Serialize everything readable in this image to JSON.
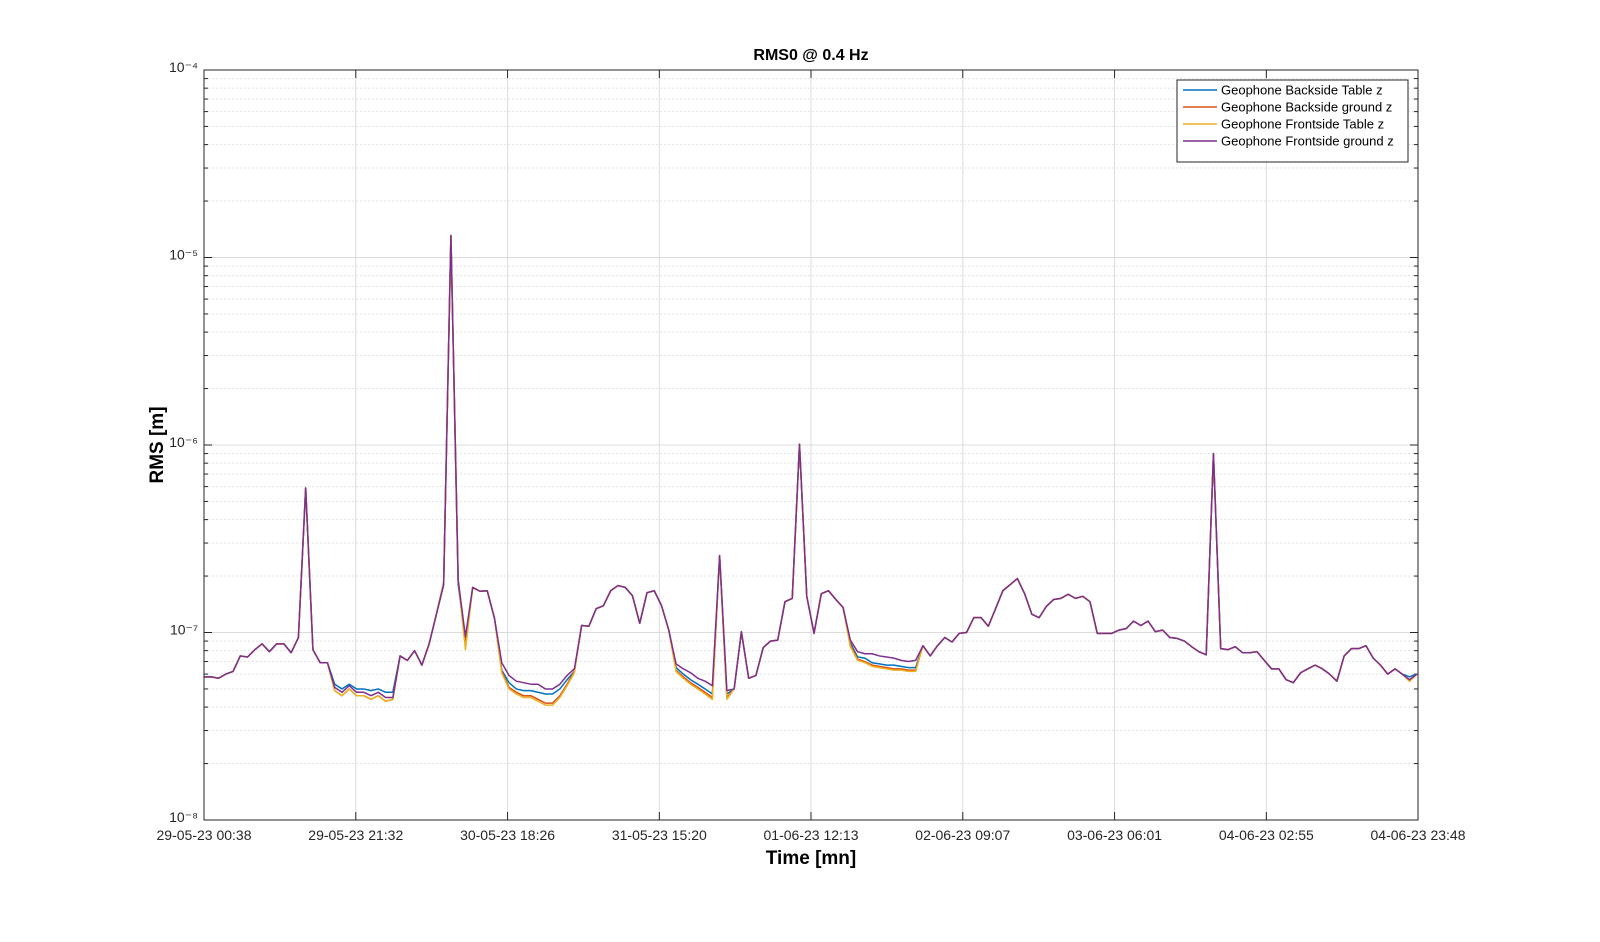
{
  "chart_data": {
    "type": "line",
    "title": "RMS0 @ 0.4 Hz",
    "x_label": "Time [mn]",
    "y_label": "RMS [m]",
    "y_scale": "log",
    "grid": true,
    "minor_grid": true,
    "legend": "northeast",
    "xlim": [
      "29-05-23 00:38",
      "04-06-23 23:48"
    ],
    "xticks": [
      "29-05-23 00:38",
      "29-05-23 21:32",
      "30-05-23 18:26",
      "31-05-23 15:20",
      "01-06-23 12:13",
      "02-06-23 09:07",
      "03-06-23 06:01",
      "04-06-23 02:55",
      "04-06-23 23:48"
    ],
    "ylim": [
      1e-08,
      0.0001
    ],
    "yticks": [
      {
        "value": 1e-08,
        "label": "10⁻⁸"
      },
      {
        "value": 1e-07,
        "label": "10⁻⁷"
      },
      {
        "value": 1e-06,
        "label": "10⁻⁶"
      },
      {
        "value": 1e-05,
        "label": "10⁻⁵"
      },
      {
        "value": 0.0001,
        "label": "10⁻⁴"
      }
    ],
    "yminorticks": [
      2e-08,
      3e-08,
      4e-08,
      5e-08,
      6e-08,
      7e-08,
      8e-08,
      9e-08,
      2e-07,
      3e-07,
      4e-07,
      5e-07,
      6e-07,
      7e-07,
      8e-07,
      9e-07,
      2e-06,
      3e-06,
      4e-06,
      5e-06,
      6e-06,
      7e-06,
      8e-06,
      9e-06,
      2e-05,
      3e-05,
      4e-05,
      5e-05,
      6e-05,
      7e-05,
      8e-05,
      9e-05
    ],
    "x": [
      "29-05-23 00:38",
      "29-05-23 01:38",
      "29-05-23 02:38",
      "29-05-23 03:38",
      "29-05-23 04:38",
      "29-05-23 05:38",
      "29-05-23 06:38",
      "29-05-23 07:38",
      "29-05-23 08:38",
      "29-05-23 09:38",
      "29-05-23 10:38",
      "29-05-23 11:38",
      "29-05-23 12:38",
      "29-05-23 13:38",
      "29-05-23 14:38",
      "29-05-23 15:38",
      "29-05-23 16:38",
      "29-05-23 17:38",
      "29-05-23 18:38",
      "29-05-23 19:38",
      "29-05-23 20:38",
      "29-05-23 21:38",
      "29-05-23 22:38",
      "29-05-23 23:38",
      "30-05-23 00:38",
      "30-05-23 01:38",
      "30-05-23 02:38",
      "30-05-23 03:38",
      "30-05-23 04:38",
      "30-05-23 05:38",
      "30-05-23 06:38",
      "30-05-23 07:38",
      "30-05-23 08:38",
      "30-05-23 09:38",
      "30-05-23 10:38",
      "30-05-23 11:38",
      "30-05-23 12:38",
      "30-05-23 13:38",
      "30-05-23 14:38",
      "30-05-23 15:38",
      "30-05-23 16:38",
      "30-05-23 17:38",
      "30-05-23 18:38",
      "30-05-23 19:38",
      "30-05-23 20:38",
      "30-05-23 21:38",
      "30-05-23 22:38",
      "30-05-23 23:38",
      "31-05-23 00:38",
      "31-05-23 01:38",
      "31-05-23 02:38",
      "31-05-23 03:38",
      "31-05-23 04:38",
      "31-05-23 05:38",
      "31-05-23 06:38",
      "31-05-23 07:38",
      "31-05-23 08:38",
      "31-05-23 09:38",
      "31-05-23 10:38",
      "31-05-23 11:38",
      "31-05-23 12:38",
      "31-05-23 13:38",
      "31-05-23 14:38",
      "31-05-23 15:38",
      "31-05-23 16:38",
      "31-05-23 17:38",
      "31-05-23 18:38",
      "31-05-23 19:38",
      "31-05-23 20:38",
      "31-05-23 21:38",
      "31-05-23 22:38",
      "31-05-23 23:38",
      "01-06-23 00:38",
      "01-06-23 01:38",
      "01-06-23 02:38",
      "01-06-23 03:38",
      "01-06-23 04:38",
      "01-06-23 05:38",
      "01-06-23 06:38",
      "01-06-23 07:38",
      "01-06-23 08:38",
      "01-06-23 09:38",
      "01-06-23 10:38",
      "01-06-23 11:38",
      "01-06-23 12:38",
      "01-06-23 13:38",
      "01-06-23 14:38",
      "01-06-23 15:38",
      "01-06-23 16:38",
      "01-06-23 17:38",
      "01-06-23 18:38",
      "01-06-23 19:38",
      "01-06-23 20:38",
      "01-06-23 21:38",
      "01-06-23 22:38",
      "01-06-23 23:38",
      "02-06-23 00:38",
      "02-06-23 01:38",
      "02-06-23 02:38",
      "02-06-23 03:38",
      "02-06-23 04:38",
      "02-06-23 05:38",
      "02-06-23 06:38",
      "02-06-23 07:38",
      "02-06-23 08:38",
      "02-06-23 09:38",
      "02-06-23 10:38",
      "02-06-23 11:38",
      "02-06-23 12:38",
      "02-06-23 13:38",
      "02-06-23 14:38",
      "02-06-23 15:38",
      "02-06-23 16:38",
      "02-06-23 17:38",
      "02-06-23 18:38",
      "02-06-23 19:38",
      "02-06-23 20:38",
      "02-06-23 21:38",
      "02-06-23 22:38",
      "02-06-23 23:38",
      "03-06-23 00:38",
      "03-06-23 01:38",
      "03-06-23 02:38",
      "03-06-23 03:38",
      "03-06-23 04:38",
      "03-06-23 05:38",
      "03-06-23 06:38",
      "03-06-23 07:38",
      "03-06-23 08:38",
      "03-06-23 09:38",
      "03-06-23 10:38",
      "03-06-23 11:38",
      "03-06-23 12:38",
      "03-06-23 13:38",
      "03-06-23 14:38",
      "03-06-23 15:38",
      "03-06-23 16:38",
      "03-06-23 17:38",
      "03-06-23 18:38",
      "03-06-23 19:38",
      "03-06-23 20:38",
      "03-06-23 21:38",
      "03-06-23 22:38",
      "03-06-23 23:38",
      "04-06-23 00:38",
      "04-06-23 01:38",
      "04-06-23 02:38",
      "04-06-23 03:38",
      "04-06-23 04:38",
      "04-06-23 05:38",
      "04-06-23 06:38",
      "04-06-23 07:38",
      "04-06-23 08:38",
      "04-06-23 09:38",
      "04-06-23 10:38",
      "04-06-23 11:38",
      "04-06-23 12:38",
      "04-06-23 13:38",
      "04-06-23 14:38",
      "04-06-23 15:38",
      "04-06-23 16:38",
      "04-06-23 17:38",
      "04-06-23 18:38",
      "04-06-23 19:38",
      "04-06-23 20:38",
      "04-06-23 21:38",
      "04-06-23 22:38",
      "04-06-23 23:38"
    ],
    "series": [
      {
        "name": "Geophone Backside Table z",
        "color": "#0072BD",
        "values": [
          5.8e-08,
          5.8e-08,
          5.7e-08,
          6e-08,
          6.2e-08,
          7.5e-08,
          7.4e-08,
          8.1e-08,
          8.7e-08,
          7.9e-08,
          8.7e-08,
          8.7e-08,
          7.8e-08,
          9.4e-08,
          5.9e-07,
          8.1e-08,
          6.9e-08,
          6.9e-08,
          5.3e-08,
          5e-08,
          5.3e-08,
          5e-08,
          5e-08,
          4.9e-08,
          5e-08,
          4.8e-08,
          4.8e-08,
          7.5e-08,
          7.1e-08,
          8e-08,
          6.7e-08,
          8.7e-08,
          1.25e-07,
          1.8e-07,
          1.31e-05,
          1.8e-07,
          9e-08,
          1.74e-07,
          1.66e-07,
          1.67e-07,
          1.19e-07,
          6.3e-08,
          5.4e-08,
          5e-08,
          4.9e-08,
          4.9e-08,
          4.8e-08,
          4.7e-08,
          4.7e-08,
          5e-08,
          5.6e-08,
          6.2e-08,
          1.09e-07,
          1.08e-07,
          1.34e-07,
          1.39e-07,
          1.67e-07,
          1.78e-07,
          1.74e-07,
          1.57e-07,
          1.12e-07,
          1.63e-07,
          1.67e-07,
          1.39e-07,
          1.03e-07,
          6.5e-08,
          6e-08,
          5.6e-08,
          5.3e-08,
          5e-08,
          4.7e-08,
          2.57e-07,
          4.7e-08,
          5e-08,
          1.01e-07,
          5.7e-08,
          5.9e-08,
          8.3e-08,
          9e-08,
          9.1e-08,
          1.46e-07,
          1.52e-07,
          1.01e-06,
          1.56e-07,
          9.9e-08,
          1.61e-07,
          1.67e-07,
          1.5e-07,
          1.36e-07,
          8.8e-08,
          7.4e-08,
          7.3e-08,
          6.9e-08,
          6.8e-08,
          6.7e-08,
          6.7e-08,
          6.6e-08,
          6.5e-08,
          6.5e-08,
          8.5e-08,
          7.5e-08,
          8.5e-08,
          9.4e-08,
          8.9e-08,
          9.9e-08,
          1e-07,
          1.2e-07,
          1.2e-07,
          1.08e-07,
          1.34e-07,
          1.67e-07,
          1.8e-07,
          1.94e-07,
          1.61e-07,
          1.25e-07,
          1.2e-07,
          1.38e-07,
          1.5e-07,
          1.52e-07,
          1.6e-07,
          1.52e-07,
          1.56e-07,
          1.46e-07,
          9.9e-08,
          9.9e-08,
          9.9e-08,
          1.03e-07,
          1.05e-07,
          1.15e-07,
          1.09e-07,
          1.15e-07,
          1.01e-07,
          1.03e-07,
          9.4e-08,
          9.3e-08,
          9e-08,
          8.4e-08,
          7.9e-08,
          7.6e-08,
          9e-07,
          8.2e-08,
          8.1e-08,
          8.4e-08,
          7.8e-08,
          7.8e-08,
          7.9e-08,
          7.1e-08,
          6.4e-08,
          6.4e-08,
          5.6e-08,
          5.4e-08,
          6.1e-08,
          6.4e-08,
          6.7e-08,
          6.4e-08,
          6e-08,
          5.5e-08,
          7.5e-08,
          8.2e-08,
          8.2e-08,
          8.5e-08,
          7.3e-08,
          6.7e-08,
          6e-08,
          6.4e-08,
          6e-08,
          5.8e-08,
          6e-08
        ]
      },
      {
        "name": "Geophone Backside ground z",
        "color": "#D95319",
        "values": [
          5.8e-08,
          5.8e-08,
          5.7e-08,
          6e-08,
          6.2e-08,
          7.5e-08,
          7.4e-08,
          8.1e-08,
          8.7e-08,
          7.9e-08,
          8.7e-08,
          8.7e-08,
          7.8e-08,
          9.4e-08,
          5.9e-07,
          8.1e-08,
          6.9e-08,
          6.9e-08,
          4.9e-08,
          4.6e-08,
          5e-08,
          4.6e-08,
          4.6e-08,
          4.4e-08,
          4.6e-08,
          4.3e-08,
          4.4e-08,
          7.5e-08,
          7.1e-08,
          8e-08,
          6.7e-08,
          8.7e-08,
          1.25e-07,
          1.85e-07,
          1.31e-05,
          1.9e-07,
          9e-08,
          1.74e-07,
          1.66e-07,
          1.67e-07,
          1.19e-07,
          6.2e-08,
          5.1e-08,
          4.8e-08,
          4.6e-08,
          4.6e-08,
          4.4e-08,
          4.2e-08,
          4.2e-08,
          4.6e-08,
          5.3e-08,
          6.2e-08,
          1.09e-07,
          1.08e-07,
          1.34e-07,
          1.39e-07,
          1.67e-07,
          1.78e-07,
          1.74e-07,
          1.57e-07,
          1.12e-07,
          1.63e-07,
          1.67e-07,
          1.39e-07,
          1.03e-07,
          6.3e-08,
          5.8e-08,
          5.4e-08,
          5.1e-08,
          4.8e-08,
          4.5e-08,
          2.57e-07,
          4.5e-08,
          5e-08,
          1.01e-07,
          5.7e-08,
          5.9e-08,
          8.3e-08,
          9e-08,
          9.1e-08,
          1.46e-07,
          1.52e-07,
          1.01e-06,
          1.56e-07,
          9.9e-08,
          1.61e-07,
          1.67e-07,
          1.5e-07,
          1.36e-07,
          8.6e-08,
          7.2e-08,
          7e-08,
          6.7e-08,
          6.6e-08,
          6.5e-08,
          6.4e-08,
          6.4e-08,
          6.3e-08,
          6.3e-08,
          8.5e-08,
          7.5e-08,
          8.5e-08,
          9.4e-08,
          8.9e-08,
          9.9e-08,
          1e-07,
          1.2e-07,
          1.2e-07,
          1.08e-07,
          1.34e-07,
          1.67e-07,
          1.8e-07,
          1.94e-07,
          1.61e-07,
          1.25e-07,
          1.2e-07,
          1.38e-07,
          1.5e-07,
          1.52e-07,
          1.6e-07,
          1.52e-07,
          1.56e-07,
          1.46e-07,
          9.9e-08,
          9.9e-08,
          9.9e-08,
          1.03e-07,
          1.05e-07,
          1.15e-07,
          1.09e-07,
          1.15e-07,
          1.01e-07,
          1.03e-07,
          9.4e-08,
          9.3e-08,
          9e-08,
          8.4e-08,
          7.9e-08,
          7.6e-08,
          9e-07,
          8.2e-08,
          8.1e-08,
          8.4e-08,
          7.8e-08,
          7.8e-08,
          7.9e-08,
          7.1e-08,
          6.4e-08,
          6.4e-08,
          5.6e-08,
          5.4e-08,
          6.1e-08,
          6.4e-08,
          6.7e-08,
          6.4e-08,
          6e-08,
          5.5e-08,
          7.5e-08,
          8.2e-08,
          8.2e-08,
          8.5e-08,
          7.3e-08,
          6.7e-08,
          6e-08,
          6.4e-08,
          6e-08,
          5.5e-08,
          6e-08
        ]
      },
      {
        "name": "Geophone Frontside Table z",
        "color": "#EDB120",
        "values": [
          5.8e-08,
          5.8e-08,
          5.7e-08,
          6e-08,
          6.2e-08,
          7.5e-08,
          7.4e-08,
          8.1e-08,
          8.7e-08,
          7.9e-08,
          8.7e-08,
          8.7e-08,
          7.8e-08,
          9.4e-08,
          5.9e-07,
          8.1e-08,
          6.9e-08,
          6.9e-08,
          4.9e-08,
          4.6e-08,
          5e-08,
          4.6e-08,
          4.6e-08,
          4.4e-08,
          4.6e-08,
          4.3e-08,
          4.4e-08,
          7.5e-08,
          7.1e-08,
          8e-08,
          6.7e-08,
          8.7e-08,
          1.25e-07,
          1.85e-07,
          1.31e-05,
          1.9e-07,
          8.1e-08,
          1.74e-07,
          1.66e-07,
          1.67e-07,
          1.19e-07,
          6.1e-08,
          5e-08,
          4.7e-08,
          4.5e-08,
          4.5e-08,
          4.3e-08,
          4.1e-08,
          4.1e-08,
          4.5e-08,
          5.2e-08,
          6.1e-08,
          1.09e-07,
          1.08e-07,
          1.34e-07,
          1.39e-07,
          1.67e-07,
          1.78e-07,
          1.74e-07,
          1.57e-07,
          1.12e-07,
          1.63e-07,
          1.67e-07,
          1.39e-07,
          1.03e-07,
          6.2e-08,
          5.7e-08,
          5.3e-08,
          5e-08,
          4.7e-08,
          4.4e-08,
          2.57e-07,
          4.4e-08,
          5e-08,
          1.01e-07,
          5.7e-08,
          5.9e-08,
          8.3e-08,
          9e-08,
          9.1e-08,
          1.46e-07,
          1.52e-07,
          1.01e-06,
          1.56e-07,
          9.9e-08,
          1.61e-07,
          1.67e-07,
          1.5e-07,
          1.36e-07,
          8.4e-08,
          7.1e-08,
          6.9e-08,
          6.6e-08,
          6.5e-08,
          6.4e-08,
          6.3e-08,
          6.3e-08,
          6.2e-08,
          6.2e-08,
          8.5e-08,
          7.5e-08,
          8.5e-08,
          9.4e-08,
          8.9e-08,
          9.9e-08,
          1e-07,
          1.2e-07,
          1.2e-07,
          1.08e-07,
          1.34e-07,
          1.67e-07,
          1.8e-07,
          1.94e-07,
          1.61e-07,
          1.25e-07,
          1.2e-07,
          1.38e-07,
          1.5e-07,
          1.52e-07,
          1.6e-07,
          1.52e-07,
          1.56e-07,
          1.46e-07,
          9.9e-08,
          9.9e-08,
          9.9e-08,
          1.03e-07,
          1.05e-07,
          1.15e-07,
          1.09e-07,
          1.15e-07,
          1.01e-07,
          1.03e-07,
          9.4e-08,
          9.3e-08,
          9e-08,
          8.4e-08,
          7.9e-08,
          7.6e-08,
          9e-07,
          8.2e-08,
          8.1e-08,
          8.4e-08,
          7.8e-08,
          7.8e-08,
          7.9e-08,
          7.1e-08,
          6.4e-08,
          6.4e-08,
          5.6e-08,
          5.4e-08,
          6.1e-08,
          6.4e-08,
          6.7e-08,
          6.4e-08,
          6e-08,
          5.5e-08,
          7.5e-08,
          8.2e-08,
          8.2e-08,
          8.5e-08,
          7.3e-08,
          6.7e-08,
          6e-08,
          6.4e-08,
          6e-08,
          5.5e-08,
          6e-08
        ]
      },
      {
        "name": "Geophone Frontside ground z",
        "color": "#7E2F8E",
        "values": [
          5.8e-08,
          5.8e-08,
          5.7e-08,
          6e-08,
          6.2e-08,
          7.5e-08,
          7.4e-08,
          8.1e-08,
          8.7e-08,
          7.9e-08,
          8.7e-08,
          8.7e-08,
          7.8e-08,
          9.4e-08,
          5.9e-07,
          8.1e-08,
          6.9e-08,
          6.9e-08,
          5.1e-08,
          4.8e-08,
          5.2e-08,
          4.8e-08,
          4.8e-08,
          4.6e-08,
          4.8e-08,
          4.5e-08,
          4.5e-08,
          7.5e-08,
          7.1e-08,
          8e-08,
          6.7e-08,
          8.7e-08,
          1.25e-07,
          1.8e-07,
          1.31e-05,
          1.9e-07,
          9.5e-08,
          1.74e-07,
          1.66e-07,
          1.67e-07,
          1.19e-07,
          6.9e-08,
          5.9e-08,
          5.5e-08,
          5.4e-08,
          5.3e-08,
          5.3e-08,
          5e-08,
          5e-08,
          5.3e-08,
          5.9e-08,
          6.4e-08,
          1.09e-07,
          1.08e-07,
          1.34e-07,
          1.39e-07,
          1.67e-07,
          1.78e-07,
          1.74e-07,
          1.57e-07,
          1.12e-07,
          1.63e-07,
          1.67e-07,
          1.39e-07,
          1.03e-07,
          6.8e-08,
          6.4e-08,
          6.1e-08,
          5.7e-08,
          5.5e-08,
          5.2e-08,
          2.57e-07,
          4.9e-08,
          5e-08,
          1.01e-07,
          5.7e-08,
          5.9e-08,
          8.3e-08,
          9e-08,
          9.1e-08,
          1.46e-07,
          1.52e-07,
          1.01e-06,
          1.56e-07,
          9.9e-08,
          1.61e-07,
          1.67e-07,
          1.5e-07,
          1.36e-07,
          9.1e-08,
          7.9e-08,
          7.7e-08,
          7.7e-08,
          7.5e-08,
          7.4e-08,
          7.3e-08,
          7.1e-08,
          7e-08,
          7.1e-08,
          8.5e-08,
          7.5e-08,
          8.5e-08,
          9.4e-08,
          8.9e-08,
          9.9e-08,
          1e-07,
          1.2e-07,
          1.2e-07,
          1.08e-07,
          1.34e-07,
          1.67e-07,
          1.8e-07,
          1.94e-07,
          1.61e-07,
          1.25e-07,
          1.2e-07,
          1.38e-07,
          1.5e-07,
          1.52e-07,
          1.6e-07,
          1.52e-07,
          1.56e-07,
          1.46e-07,
          9.9e-08,
          9.9e-08,
          9.9e-08,
          1.03e-07,
          1.05e-07,
          1.15e-07,
          1.09e-07,
          1.15e-07,
          1.01e-07,
          1.03e-07,
          9.4e-08,
          9.3e-08,
          9e-08,
          8.4e-08,
          7.9e-08,
          7.6e-08,
          9e-07,
          8.2e-08,
          8.1e-08,
          8.4e-08,
          7.8e-08,
          7.8e-08,
          7.9e-08,
          7.1e-08,
          6.4e-08,
          6.4e-08,
          5.6e-08,
          5.4e-08,
          6.1e-08,
          6.4e-08,
          6.7e-08,
          6.4e-08,
          6e-08,
          5.5e-08,
          7.5e-08,
          8.2e-08,
          8.2e-08,
          8.5e-08,
          7.3e-08,
          6.7e-08,
          6e-08,
          6.4e-08,
          6e-08,
          5.6e-08,
          6e-08
        ]
      }
    ]
  }
}
